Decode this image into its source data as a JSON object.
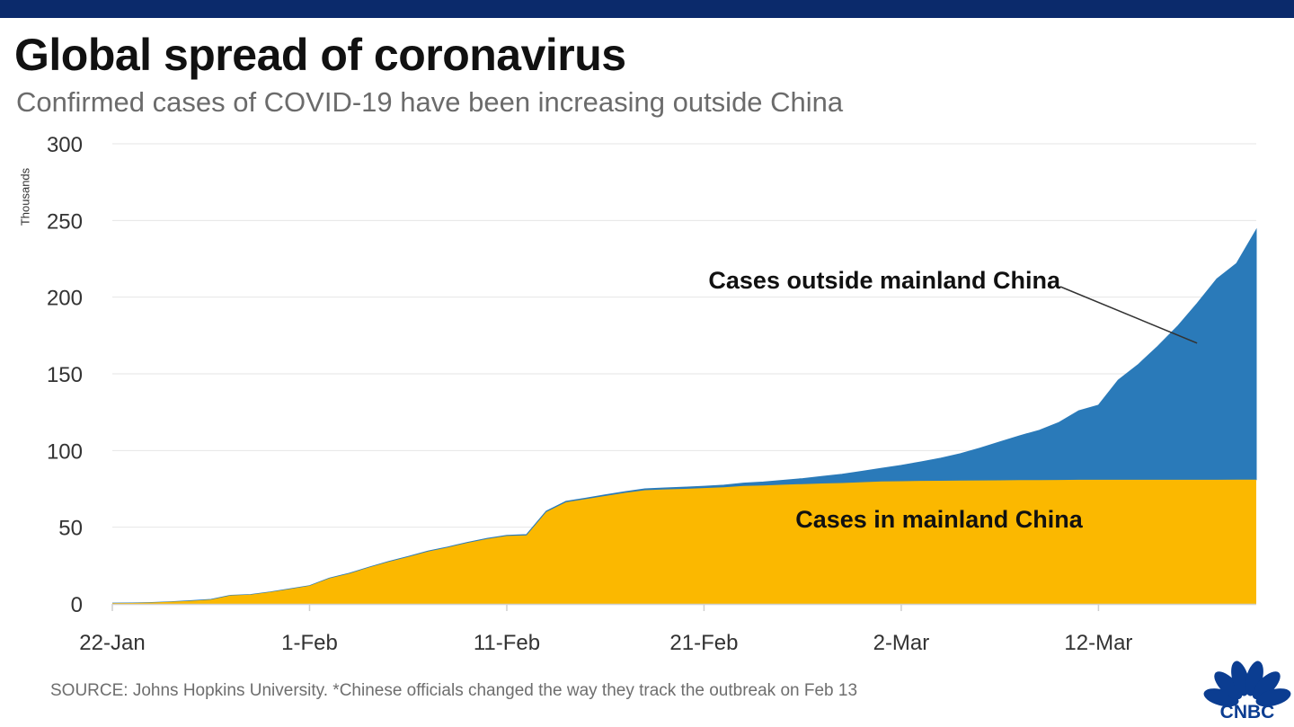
{
  "header": {
    "title": "Global spread of coronavirus",
    "subtitle": "Confirmed cases of COVID-19 have been increasing outside China"
  },
  "footer": {
    "source": "SOURCE: Johns Hopkins University. *Chinese officials changed the way they track the outbreak on Feb 13",
    "logo_text": "CNBC"
  },
  "colors": {
    "brand_bar": "#0b2a6b",
    "china": "#fbb800",
    "outside": "#2a7ab9",
    "logo": "#0b3d91"
  },
  "chart_data": {
    "type": "area",
    "stacked": true,
    "title": "Global spread of coronavirus",
    "subtitle": "Confirmed cases of COVID-19 have been increasing outside China",
    "ylabel": "Thousands",
    "ylim": [
      0,
      300
    ],
    "yticks": [
      0,
      50,
      100,
      150,
      200,
      250,
      300
    ],
    "grid": true,
    "x": [
      "22-Jan",
      "23-Jan",
      "24-Jan",
      "25-Jan",
      "26-Jan",
      "27-Jan",
      "28-Jan",
      "29-Jan",
      "30-Jan",
      "31-Jan",
      "1-Feb",
      "2-Feb",
      "3-Feb",
      "4-Feb",
      "5-Feb",
      "6-Feb",
      "7-Feb",
      "8-Feb",
      "9-Feb",
      "10-Feb",
      "11-Feb",
      "12-Feb",
      "13-Feb",
      "14-Feb",
      "15-Feb",
      "16-Feb",
      "17-Feb",
      "18-Feb",
      "19-Feb",
      "20-Feb",
      "21-Feb",
      "22-Feb",
      "23-Feb",
      "24-Feb",
      "25-Feb",
      "26-Feb",
      "27-Feb",
      "28-Feb",
      "29-Feb",
      "1-Mar",
      "2-Mar",
      "3-Mar",
      "4-Mar",
      "5-Mar",
      "6-Mar",
      "7-Mar",
      "8-Mar",
      "9-Mar",
      "10-Mar",
      "11-Mar",
      "12-Mar",
      "13-Mar",
      "14-Mar",
      "15-Mar",
      "16-Mar",
      "17-Mar",
      "18-Mar",
      "19-Mar",
      "20-Mar"
    ],
    "xtick_labels": [
      "22-Jan",
      "1-Feb",
      "11-Feb",
      "21-Feb",
      "2-Mar",
      "12-Mar"
    ],
    "series": [
      {
        "name": "Cases in mainland China",
        "values": [
          0.5,
          0.6,
          0.9,
          1.4,
          2.0,
          2.8,
          5.5,
          6.0,
          7.7,
          9.7,
          11.8,
          16.6,
          19.7,
          23.7,
          27.4,
          30.6,
          34.1,
          36.8,
          39.8,
          42.3,
          44.3,
          44.7,
          59.9,
          66.3,
          68.3,
          70.4,
          72.4,
          74.1,
          74.6,
          75.0,
          75.5,
          76.0,
          76.9,
          77.2,
          77.7,
          78.1,
          78.5,
          78.8,
          79.3,
          79.8,
          80.0,
          80.2,
          80.3,
          80.4,
          80.5,
          80.6,
          80.7,
          80.7,
          80.8,
          80.9,
          80.9,
          80.9,
          80.9,
          80.9,
          80.9,
          80.9,
          80.9,
          81.0,
          81.0
        ]
      },
      {
        "name": "Cases outside mainland China",
        "values": [
          0.0,
          0.0,
          0.0,
          0.0,
          0.1,
          0.1,
          0.1,
          0.1,
          0.1,
          0.1,
          0.1,
          0.2,
          0.2,
          0.2,
          0.2,
          0.3,
          0.3,
          0.3,
          0.3,
          0.4,
          0.4,
          0.5,
          0.6,
          0.6,
          0.6,
          0.7,
          0.8,
          0.9,
          1.0,
          1.1,
          1.2,
          1.4,
          1.8,
          2.3,
          2.9,
          3.6,
          4.6,
          5.7,
          7.1,
          8.6,
          10.3,
          12.4,
          14.7,
          17.5,
          21.1,
          25.0,
          28.9,
          32.5,
          37.5,
          45.0,
          48.7,
          65.0,
          75.0,
          87.0,
          100.0,
          115.0,
          131.0,
          141.0,
          163.0
        ]
      }
    ],
    "annotations": [
      {
        "text": "Cases outside mainland China",
        "x": "17-Mar",
        "y": 170
      },
      {
        "text": "Cases in mainland China"
      }
    ]
  }
}
